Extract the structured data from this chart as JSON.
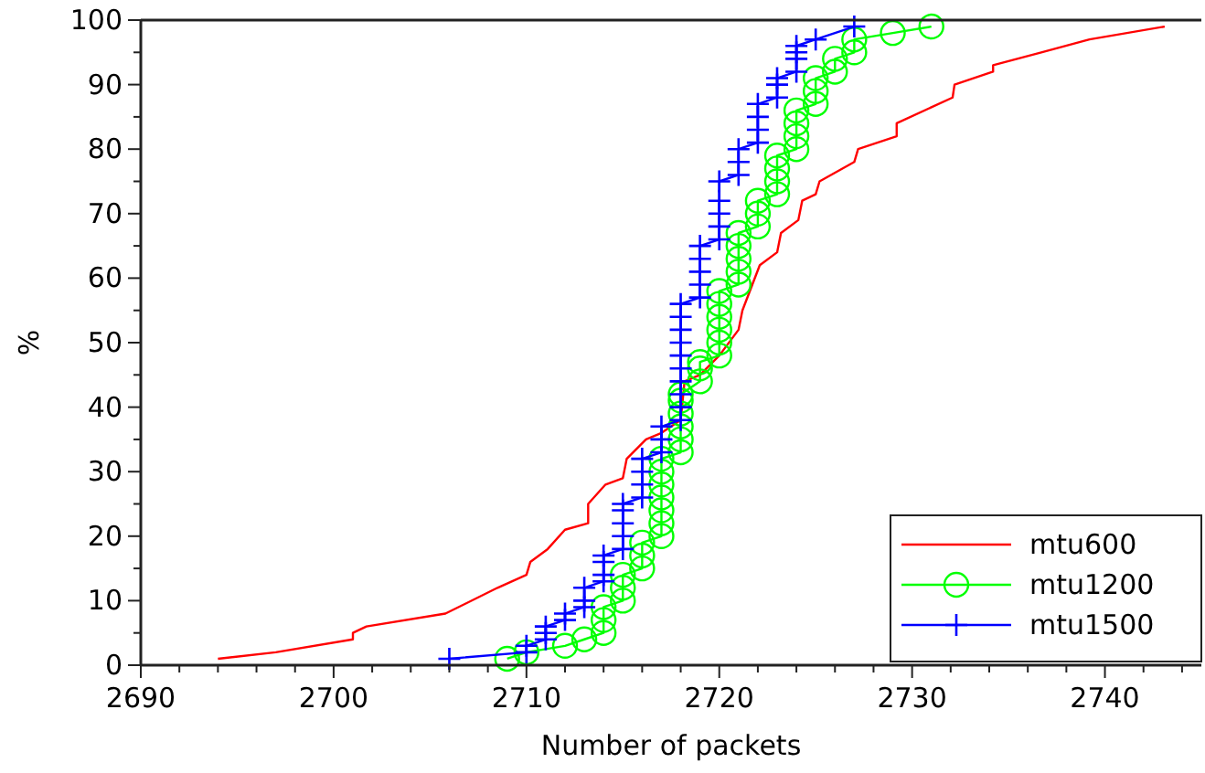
{
  "chart_data": {
    "type": "line",
    "xlabel": "Number of packets",
    "ylabel": "%",
    "xlim": [
      2690,
      2745
    ],
    "ylim": [
      0,
      100
    ],
    "xticks": [
      2690,
      {
        "value": 2692,
        "label": null
      },
      {
        "value": 2694,
        "label": null
      },
      {
        "value": 2696,
        "label": null
      },
      {
        "value": 2698,
        "label": null
      },
      2700,
      {
        "value": 2702,
        "label": null
      },
      {
        "value": 2704,
        "label": null
      },
      {
        "value": 2706,
        "label": null
      },
      {
        "value": 2708,
        "label": null
      },
      2710,
      {
        "value": 2712,
        "label": null
      },
      {
        "value": 2714,
        "label": null
      },
      {
        "value": 2716,
        "label": null
      },
      {
        "value": 2718,
        "label": null
      },
      2720,
      {
        "value": 2722,
        "label": null
      },
      {
        "value": 2724,
        "label": null
      },
      {
        "value": 2726,
        "label": null
      },
      {
        "value": 2728,
        "label": null
      },
      2730,
      {
        "value": 2732,
        "label": null
      },
      {
        "value": 2734,
        "label": null
      },
      {
        "value": 2736,
        "label": null
      },
      {
        "value": 2738,
        "label": null
      },
      2740,
      {
        "value": 2742,
        "label": null
      },
      {
        "value": 2744,
        "label": null
      }
    ],
    "yticks": [
      0,
      {
        "value": 5,
        "label": null
      },
      10,
      {
        "value": 15,
        "label": null
      },
      20,
      {
        "value": 25,
        "label": null
      },
      30,
      {
        "value": 35,
        "label": null
      },
      40,
      {
        "value": 45,
        "label": null
      },
      50,
      {
        "value": 55,
        "label": null
      },
      60,
      {
        "value": 65,
        "label": null
      },
      70,
      {
        "value": 75,
        "label": null
      },
      80,
      {
        "value": 85,
        "label": null
      },
      90,
      {
        "value": 95,
        "label": null
      },
      100
    ],
    "grid": false,
    "legend": "bottom right",
    "series": [
      {
        "name": "mtu600",
        "color": "#ff0000",
        "marker": "none",
        "x": [
          2694,
          2697,
          2701,
          2701,
          2701.7,
          2705.8,
          2708.5,
          2710,
          2710.2,
          2711.1,
          2712,
          2713.2,
          2713.2,
          2714.1,
          2715,
          2715.2,
          2716.2,
          2717,
          2718,
          2718.2,
          2719,
          2720,
          2721,
          2721.2,
          2722.1,
          2723,
          2723.2,
          2724.1,
          2724.3,
          2725,
          2725.2,
          2727,
          2727.2,
          2729.2,
          2729.2,
          2732.1,
          2732.2,
          2734.2,
          2734.2,
          2736.7,
          2739.2,
          2743.1
        ],
        "values": [
          1,
          2,
          4,
          5,
          6,
          8,
          12,
          14,
          16,
          18,
          21,
          22,
          25,
          28,
          29,
          32,
          35,
          36,
          38,
          44,
          45,
          48,
          52,
          55,
          62,
          64,
          67,
          69,
          72,
          73,
          75,
          78,
          80,
          82,
          84,
          88,
          90,
          92,
          93,
          95,
          97,
          99
        ]
      },
      {
        "name": "mtu1200",
        "color": "#00ff00",
        "marker": "circle",
        "x": [
          2709,
          2710,
          2712,
          2713,
          2714,
          2714,
          2714,
          2715,
          2715,
          2715,
          2716,
          2716,
          2716,
          2717,
          2717,
          2717,
          2717,
          2717,
          2717,
          2717,
          2718,
          2718,
          2718,
          2718,
          2718,
          2718,
          2719,
          2719,
          2719,
          2720,
          2720,
          2720,
          2720,
          2720,
          2720,
          2721,
          2721,
          2721,
          2721,
          2721,
          2722,
          2722,
          2722,
          2723,
          2723,
          2723,
          2723,
          2724,
          2724,
          2724,
          2724,
          2725,
          2725,
          2725,
          2726,
          2726,
          2727,
          2727,
          2729,
          2731
        ],
        "values": [
          1,
          2,
          3,
          4,
          5,
          7,
          9,
          10,
          12,
          14,
          15,
          17,
          19,
          20,
          22,
          24,
          26,
          28,
          30,
          32,
          33,
          35,
          37,
          39,
          41,
          42,
          44,
          46,
          47,
          48,
          50,
          52,
          54,
          56,
          58,
          59,
          61,
          63,
          65,
          67,
          68,
          70,
          72,
          73,
          75,
          77,
          79,
          80,
          82,
          84,
          86,
          87,
          89,
          91,
          92,
          94,
          95,
          97,
          98,
          99
        ]
      },
      {
        "name": "mtu1500",
        "color": "#0000ff",
        "marker": "cross",
        "x": [
          2706,
          2710,
          2710,
          2711,
          2711,
          2711,
          2712,
          2712,
          2713,
          2713,
          2713,
          2714,
          2714,
          2714,
          2714,
          2715,
          2715,
          2715,
          2715,
          2715,
          2716,
          2716,
          2716,
          2716,
          2717,
          2717,
          2717,
          2718,
          2718,
          2718,
          2718,
          2718,
          2718,
          2718,
          2718,
          2718,
          2718,
          2719,
          2719,
          2719,
          2719,
          2719,
          2720,
          2720,
          2720,
          2720,
          2720,
          2721,
          2721,
          2721,
          2722,
          2722,
          2722,
          2722,
          2723,
          2723,
          2723,
          2724,
          2724,
          2724,
          2724,
          2725,
          2727
        ],
        "values": [
          1,
          2,
          3,
          4,
          5,
          6,
          7,
          8,
          9,
          10,
          12,
          13,
          14,
          16,
          17,
          18,
          20,
          22,
          24,
          25,
          26,
          28,
          30,
          32,
          33,
          35,
          37,
          38,
          40,
          42,
          44,
          46,
          48,
          50,
          52,
          54,
          56,
          57,
          59,
          61,
          63,
          65,
          66,
          68,
          70,
          72,
          75,
          76,
          78,
          80,
          81,
          83,
          85,
          87,
          88,
          90,
          91,
          92,
          94,
          95,
          96,
          97,
          99
        ]
      }
    ]
  }
}
